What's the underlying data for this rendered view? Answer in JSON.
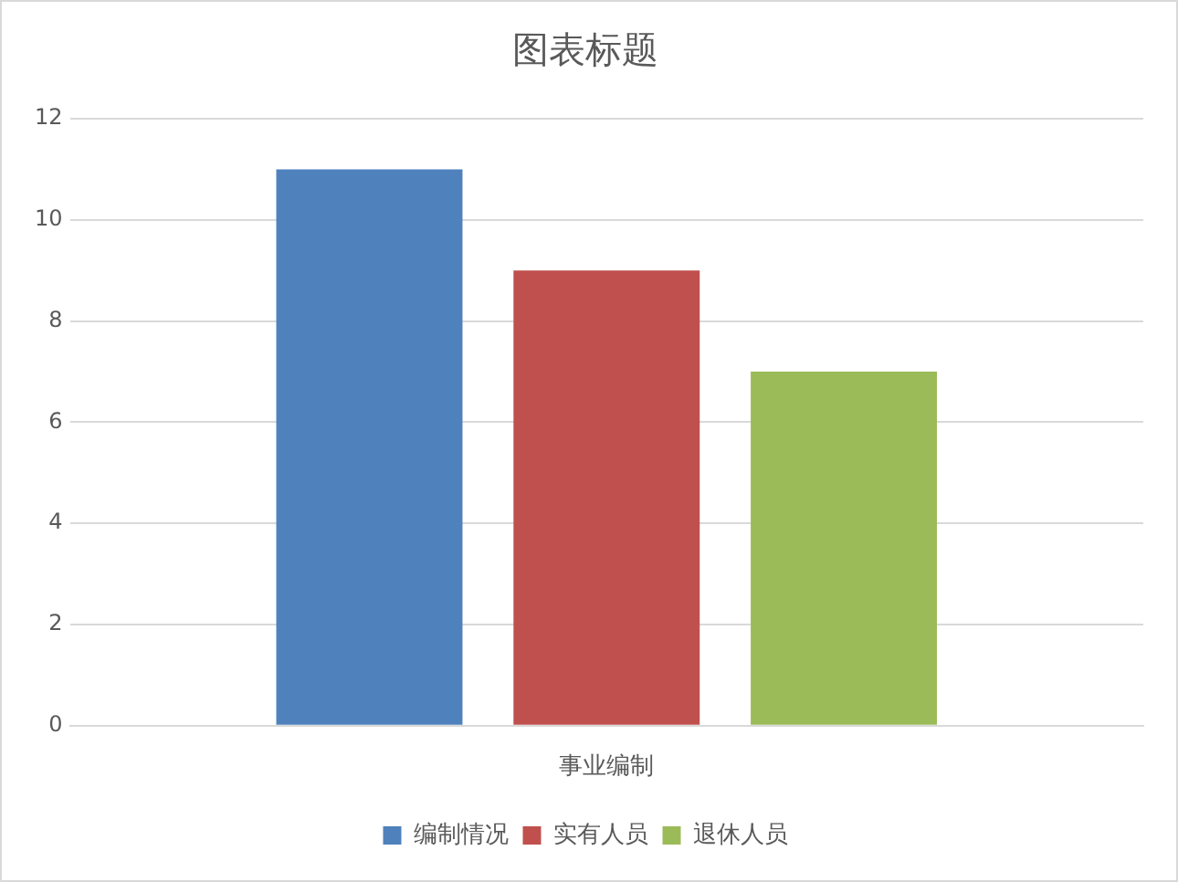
{
  "chart_data": {
    "type": "bar",
    "title": "图表标题",
    "categories": [
      "事业编制"
    ],
    "series": [
      {
        "name": "编制情况",
        "color": "#4f81bd",
        "values": [
          11
        ]
      },
      {
        "name": "实有人员",
        "color": "#c0504d",
        "values": [
          9
        ]
      },
      {
        "name": "退休人员",
        "color": "#9bbb59",
        "values": [
          7
        ]
      }
    ],
    "ylim": [
      0,
      12
    ],
    "yticks": [
      0,
      2,
      4,
      6,
      8,
      10,
      12
    ],
    "grid": "y",
    "legend": "bottom"
  }
}
